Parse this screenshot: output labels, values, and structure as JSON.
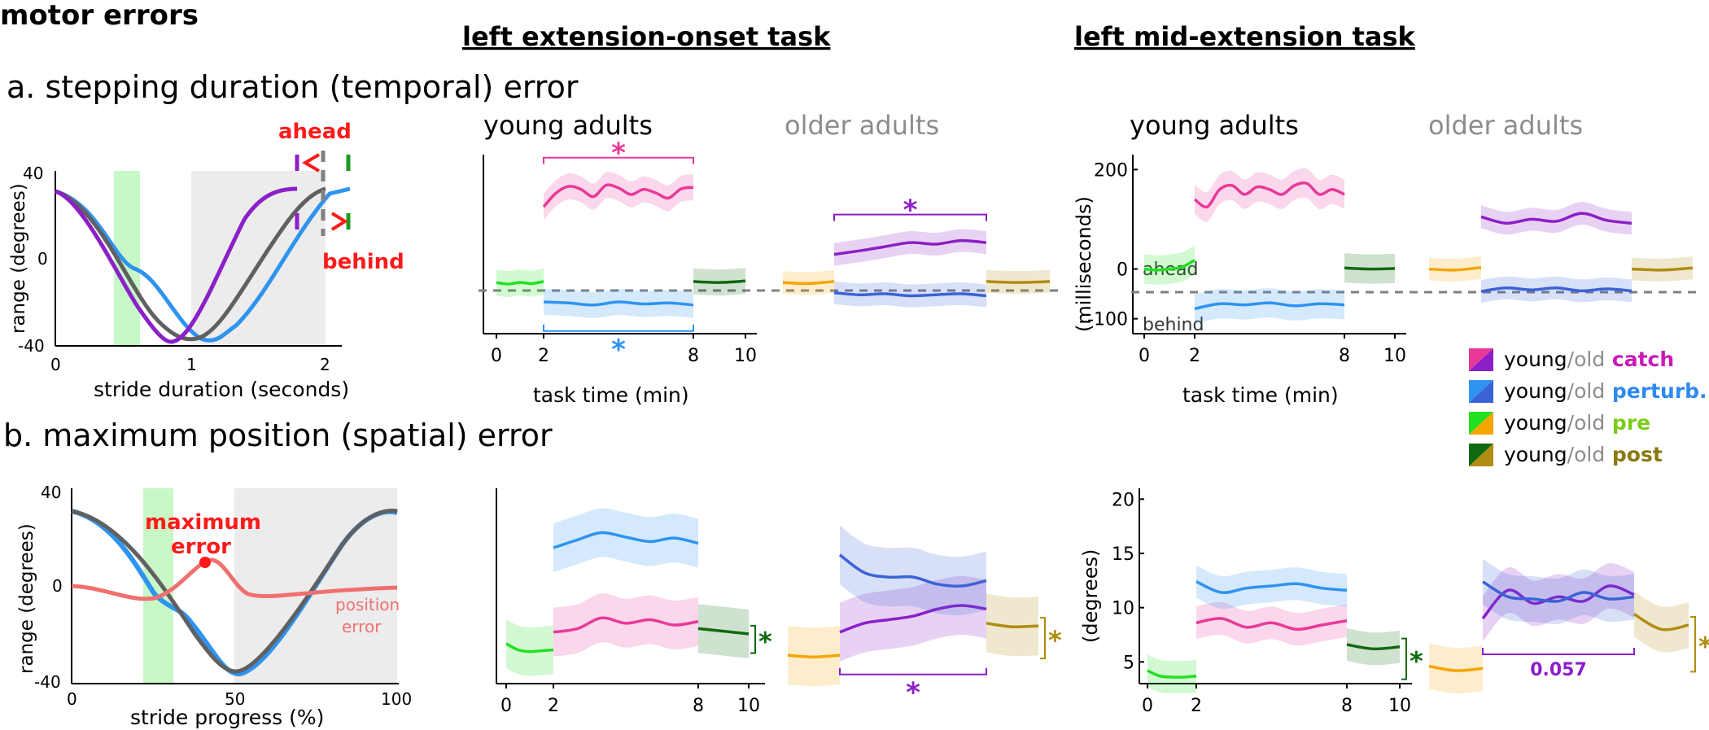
{
  "figure": {
    "section_title": "motor errors",
    "task_left_title": "left extension-onset task",
    "task_right_title": "left mid-extension task",
    "panel_a_title": "a. stepping duration (temporal) error",
    "panel_b_title": "b. maximum position (spatial) error",
    "young_label": "young adults",
    "older_label": "older adults",
    "task_time_label": "task time (min)",
    "ms_label": "(milliseconds)",
    "deg_label": "(degrees)",
    "star": "*",
    "p_value": "0.057",
    "ahead_label": "ahead",
    "behind_label": "behind"
  },
  "legend": {
    "items": [
      {
        "young": "young",
        "slash": "/",
        "old": "old",
        "cond": "catch",
        "color_young": "#e8399a",
        "color_old": "#8b1fc8",
        "cond_color": "#c81ab8"
      },
      {
        "young": "young",
        "slash": "/",
        "old": "old",
        "cond": "perturb.",
        "color_young": "#2f93f0",
        "color_old": "#3b63d6",
        "cond_color": "#2f8af0"
      },
      {
        "young": "young",
        "slash": "/",
        "old": "old",
        "cond": "pre",
        "color_young": "#22e022",
        "color_old": "#f5a500",
        "cond_color": "#7ccc1a"
      },
      {
        "young": "young",
        "slash": "/",
        "old": "old",
        "cond": "post",
        "color_young": "#0f6a0f",
        "color_old": "#b08c10",
        "cond_color": "#8a7a10"
      }
    ]
  },
  "colors": {
    "catch_young": "#e8399a",
    "catch_old": "#8b1fc8",
    "perturb_young": "#2f93f0",
    "perturb_old": "#3b63d6",
    "pre_young": "#22e022",
    "pre_old": "#f5a500",
    "post_young": "#0f6a0f",
    "post_old": "#b08c10",
    "red": "#ff1a1a",
    "gray": "#808080"
  },
  "chart_data": [
    {
      "id": "a-schematic",
      "type": "line",
      "xlabel": "stride duration (seconds)",
      "ylabel": "range (degrees)",
      "xticks": [
        "0",
        "1",
        "2"
      ],
      "yticks": [
        "40",
        "0",
        "-40"
      ],
      "xlim": [
        0,
        2.2
      ],
      "ylim": [
        -40,
        40
      ],
      "shaded_regions": [
        {
          "from": 0.42,
          "to": 0.6,
          "color": "#c8f7c8"
        },
        {
          "from": 1.0,
          "to": 2.0,
          "color": "#ececec"
        }
      ],
      "series": [
        {
          "color": "#2f93f0",
          "x": [
            0,
            0.3,
            0.55,
            0.7,
            0.85,
            1.0,
            1.15,
            1.4,
            1.7,
            2.0,
            2.2
          ],
          "y": [
            32,
            10,
            -10,
            -14,
            -24,
            -34,
            -38,
            -20,
            5,
            22,
            32
          ]
        },
        {
          "color": "#606060",
          "x": [
            0,
            0.25,
            0.5,
            0.75,
            1.0,
            1.25,
            1.5,
            1.75,
            2.0
          ],
          "y": [
            32,
            12,
            -14,
            -34,
            -38,
            -26,
            -4,
            18,
            32
          ]
        },
        {
          "color": "#8b1fc8",
          "x": [
            0,
            0.2,
            0.45,
            0.65,
            0.82,
            1.0,
            1.2,
            1.45,
            1.8
          ],
          "y": [
            32,
            12,
            -14,
            -32,
            -38,
            -30,
            -10,
            12,
            32
          ]
        }
      ],
      "annotations": [
        "ahead",
        "behind"
      ]
    },
    {
      "id": "a-extension-onset-young",
      "type": "line",
      "xlabel": "task time (min)",
      "xticks": [
        "0",
        "2",
        "8",
        "10"
      ],
      "ylim": [
        -100,
        250
      ],
      "series": [
        {
          "name": "pre",
          "color": "#22e022",
          "x": [
            0,
            0.5,
            1,
            1.5,
            2
          ],
          "y": [
            0,
            -3,
            0,
            -2,
            2
          ]
        },
        {
          "name": "catch",
          "color": "#e8399a",
          "x": [
            2,
            2.5,
            3,
            3.5,
            4,
            4.5,
            5,
            5.5,
            6,
            6.5,
            7,
            7.5,
            8
          ],
          "y": [
            148,
            175,
            188,
            182,
            168,
            190,
            185,
            172,
            182,
            175,
            165,
            183,
            186
          ]
        },
        {
          "name": "perturb.",
          "color": "#2f93f0",
          "x": [
            2,
            3,
            4,
            5,
            6,
            7,
            8
          ],
          "y": [
            -38,
            -40,
            -44,
            -38,
            -42,
            -40,
            -44
          ]
        },
        {
          "name": "post",
          "color": "#0f6a0f",
          "x": [
            8,
            9,
            10
          ],
          "y": [
            2,
            0,
            3
          ]
        }
      ],
      "sig": [
        {
          "over": "catch",
          "label": "*"
        },
        {
          "under": "perturb.",
          "label": "*"
        }
      ]
    },
    {
      "id": "a-extension-onset-older",
      "type": "line",
      "ylim": [
        -100,
        250
      ],
      "series": [
        {
          "name": "pre",
          "color": "#f5a500",
          "x": [
            0,
            1,
            2
          ],
          "y": [
            0,
            -2,
            2
          ]
        },
        {
          "name": "catch",
          "color": "#8b1fc8",
          "x": [
            2,
            3,
            4,
            5,
            6,
            7,
            8
          ],
          "y": [
            55,
            62,
            70,
            78,
            75,
            82,
            78
          ]
        },
        {
          "name": "perturb.",
          "color": "#3b63d6",
          "x": [
            2,
            3,
            4,
            5,
            6,
            7,
            8
          ],
          "y": [
            -20,
            -24,
            -22,
            -26,
            -24,
            -22,
            -26
          ]
        },
        {
          "name": "post",
          "color": "#b08c10",
          "x": [
            8,
            9,
            10
          ],
          "y": [
            2,
            0,
            2
          ]
        }
      ],
      "sig": [
        {
          "over": "catch",
          "label": "*"
        }
      ]
    },
    {
      "id": "a-mid-extension-young",
      "type": "line",
      "ylabel": "(milliseconds)",
      "xlabel": "task time (min)",
      "xticks": [
        "0",
        "2",
        "8",
        "10"
      ],
      "yticks": [
        "200",
        "0",
        "-100"
      ],
      "ylim": [
        -130,
        230
      ],
      "series": [
        {
          "name": "pre",
          "color": "#22e022",
          "x": [
            0,
            0.5,
            1,
            1.5,
            2
          ],
          "y": [
            0,
            -2,
            0,
            4,
            18
          ]
        },
        {
          "name": "catch",
          "color": "#e8399a",
          "x": [
            2,
            2.5,
            3,
            3.5,
            4,
            4.5,
            5,
            5.5,
            6,
            6.5,
            7,
            7.5,
            8
          ],
          "y": [
            140,
            125,
            160,
            168,
            150,
            165,
            160,
            150,
            168,
            172,
            150,
            160,
            150
          ]
        },
        {
          "name": "perturb.",
          "color": "#2f93f0",
          "x": [
            2,
            3,
            4,
            5,
            6,
            7,
            8
          ],
          "y": [
            -80,
            -70,
            -72,
            -68,
            -74,
            -70,
            -72
          ]
        },
        {
          "name": "post",
          "color": "#0f6a0f",
          "x": [
            8,
            9,
            10
          ],
          "y": [
            2,
            0,
            1
          ]
        }
      ],
      "annotations": [
        "ahead",
        "behind"
      ]
    },
    {
      "id": "a-mid-extension-older",
      "type": "line",
      "ylim": [
        -130,
        230
      ],
      "series": [
        {
          "name": "pre",
          "color": "#f5a500",
          "x": [
            0,
            1,
            2
          ],
          "y": [
            0,
            -2,
            3
          ]
        },
        {
          "name": "catch",
          "color": "#8b1fc8",
          "x": [
            2,
            3,
            4,
            5,
            6,
            7,
            8
          ],
          "y": [
            105,
            92,
            100,
            96,
            112,
            98,
            92
          ]
        },
        {
          "name": "perturb.",
          "color": "#3b63d6",
          "x": [
            2,
            3,
            4,
            5,
            6,
            7,
            8
          ],
          "y": [
            -45,
            -38,
            -42,
            -38,
            -44,
            -40,
            -44
          ]
        },
        {
          "name": "post",
          "color": "#b08c10",
          "x": [
            8,
            9,
            10
          ],
          "y": [
            0,
            -2,
            2
          ]
        }
      ]
    },
    {
      "id": "b-schematic",
      "type": "line",
      "xlabel": "stride progress (%)",
      "ylabel": "range (degrees)",
      "xticks": [
        "0",
        "50",
        "100"
      ],
      "yticks": [
        "40",
        "0",
        "-40"
      ],
      "xlim": [
        0,
        100
      ],
      "ylim": [
        -40,
        40
      ],
      "shaded_regions": [
        {
          "from": 21,
          "to": 30,
          "color": "#c8f7c8"
        },
        {
          "from": 50,
          "to": 100,
          "color": "#ececec"
        }
      ],
      "series": [
        {
          "color": "#2f93f0",
          "x": [
            0,
            10,
            20,
            25,
            30,
            40,
            50,
            56,
            65,
            80,
            90,
            100
          ],
          "y": [
            32,
            24,
            4,
            -6,
            -8,
            -20,
            -35,
            -36,
            -20,
            12,
            26,
            30
          ]
        },
        {
          "color": "#606060",
          "x": [
            0,
            10,
            20,
            30,
            40,
            50,
            60,
            70,
            80,
            90,
            100
          ],
          "y": [
            32,
            24,
            8,
            -12,
            -28,
            -36,
            -28,
            -8,
            14,
            28,
            32
          ]
        },
        {
          "name": "position error",
          "color": "#f07070",
          "x": [
            0,
            10,
            20,
            28,
            35,
            42,
            48,
            53,
            60,
            70,
            80,
            90,
            100
          ],
          "y": [
            0,
            -2,
            -6,
            -2,
            4,
            10,
            6,
            -2,
            -4,
            -3,
            -2,
            -1,
            0
          ]
        }
      ],
      "annotations": [
        "maximum error",
        "position error"
      ]
    },
    {
      "id": "b-extension-onset-young",
      "type": "line",
      "xticks": [
        "0",
        "2",
        "8",
        "10"
      ],
      "ylim": [
        0,
        22
      ],
      "series": [
        {
          "name": "pre",
          "color": "#22e022",
          "x": [
            0,
            0.5,
            1,
            1.5,
            2
          ],
          "y": [
            4.5,
            3.8,
            3.6,
            3.7,
            3.8
          ]
        },
        {
          "name": "catch",
          "color": "#e8399a",
          "x": [
            2,
            3,
            4,
            5,
            6,
            7,
            8
          ],
          "y": [
            5.8,
            6.2,
            7.4,
            6.8,
            7.2,
            6.6,
            7.0
          ]
        },
        {
          "name": "perturb.",
          "color": "#2f93f0",
          "x": [
            2,
            3,
            4,
            5,
            6,
            7,
            8
          ],
          "y": [
            15.3,
            16.2,
            17.0,
            16.5,
            16.0,
            16.4,
            15.8
          ]
        },
        {
          "name": "post",
          "color": "#0f6a0f",
          "x": [
            8,
            9,
            10
          ],
          "y": [
            6.2,
            5.9,
            5.6
          ]
        }
      ],
      "sig": [
        {
          "post_vs_pre": true,
          "label": "*"
        }
      ]
    },
    {
      "id": "b-extension-onset-older",
      "type": "line",
      "ylim": [
        0,
        22
      ],
      "series": [
        {
          "name": "pre",
          "color": "#f5a500",
          "x": [
            0,
            1,
            2
          ],
          "y": [
            3.2,
            3.0,
            3.2
          ]
        },
        {
          "name": "catch",
          "color": "#8b1fc8",
          "x": [
            2,
            3,
            4,
            5,
            6,
            7,
            8
          ],
          "y": [
            5.8,
            6.8,
            7.2,
            7.6,
            8.4,
            8.8,
            8.4
          ]
        },
        {
          "name": "perturb.",
          "color": "#3b63d6",
          "x": [
            2,
            3,
            4,
            5,
            6,
            7,
            8
          ],
          "y": [
            14.5,
            12.5,
            12.0,
            12.0,
            11.2,
            11.0,
            11.6
          ]
        },
        {
          "name": "post",
          "color": "#b08c10",
          "x": [
            8,
            9,
            10
          ],
          "y": [
            6.8,
            6.4,
            6.5
          ]
        }
      ],
      "sig": [
        {
          "under": "catch",
          "label": "*"
        },
        {
          "post_vs_pre": true,
          "label": "*"
        }
      ]
    },
    {
      "id": "b-mid-extension-young",
      "type": "line",
      "ylabel": "(degrees)",
      "xticks": [
        "0",
        "2",
        "8",
        "10"
      ],
      "yticks": [
        "5",
        "10",
        "15",
        "20"
      ],
      "ylim": [
        3,
        21
      ],
      "series": [
        {
          "name": "pre",
          "color": "#22e022",
          "x": [
            0,
            0.5,
            1,
            1.5,
            2
          ],
          "y": [
            4.2,
            3.7,
            3.6,
            3.6,
            3.7
          ]
        },
        {
          "name": "catch",
          "color": "#e8399a",
          "x": [
            2,
            3,
            4,
            5,
            6,
            7,
            8
          ],
          "y": [
            8.6,
            9.0,
            8.2,
            8.6,
            8.0,
            8.4,
            8.8
          ]
        },
        {
          "name": "perturb.",
          "color": "#2f93f0",
          "x": [
            2,
            3,
            4,
            5,
            6,
            7,
            8
          ],
          "y": [
            12.4,
            11.4,
            11.8,
            12.0,
            12.2,
            11.8,
            11.6
          ]
        },
        {
          "name": "post",
          "color": "#0f6a0f",
          "x": [
            8,
            9,
            10
          ],
          "y": [
            6.6,
            6.2,
            6.4
          ]
        }
      ],
      "sig": [
        {
          "post_vs_pre": true,
          "label": "*"
        }
      ]
    },
    {
      "id": "b-mid-extension-older",
      "type": "line",
      "ylim": [
        3,
        21
      ],
      "series": [
        {
          "name": "pre",
          "color": "#f5a500",
          "x": [
            0,
            1,
            2
          ],
          "y": [
            4.6,
            4.2,
            4.4
          ]
        },
        {
          "name": "catch",
          "color": "#8b1fc8",
          "x": [
            2,
            3,
            4,
            5,
            6,
            7,
            8
          ],
          "y": [
            9.0,
            11.6,
            10.4,
            11.0,
            10.6,
            12.0,
            11.2
          ]
        },
        {
          "name": "perturb.",
          "color": "#3b63d6",
          "x": [
            2,
            3,
            4,
            5,
            6,
            7,
            8
          ],
          "y": [
            12.4,
            11.0,
            10.8,
            10.6,
            11.4,
            10.8,
            11.0
          ]
        },
        {
          "name": "post",
          "color": "#b08c10",
          "x": [
            8,
            9,
            10
          ],
          "y": [
            9.4,
            8.0,
            8.4
          ]
        }
      ],
      "sig": [
        {
          "under": "catch",
          "label": "0.057"
        },
        {
          "post_vs_pre": true,
          "label": "*"
        }
      ]
    }
  ]
}
